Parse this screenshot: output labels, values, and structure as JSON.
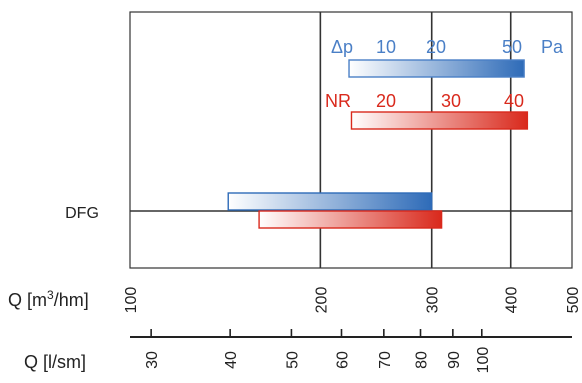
{
  "chart_data": {
    "type": "bar",
    "orientation": "horizontal",
    "title": "",
    "grid": true,
    "categories": [
      "DFG"
    ],
    "x_axis_primary": {
      "label_prefix": "Q [m",
      "label_sup": "3",
      "label_suffix": "/hm]",
      "scale": "log",
      "xlim": [
        100,
        500
      ],
      "ticks": [
        100,
        200,
        300,
        400,
        500
      ],
      "gridlines_at": [
        200,
        300,
        400
      ]
    },
    "x_axis_secondary": {
      "label": "Q [l/sm]",
      "ticks": [
        30,
        40,
        50,
        60,
        70,
        80,
        90,
        100
      ]
    },
    "series": [
      {
        "name": "",
        "color": "#2e6bb8",
        "start": 143,
        "end": 300
      },
      {
        "name": "",
        "color": "#d9291c",
        "start": 160,
        "end": 311
      }
    ],
    "legend": [
      {
        "label": "Δp",
        "color": "#4a7fc6",
        "ticks": [
          "10",
          "20",
          "50"
        ],
        "unit": "Pa",
        "bar_start": 222,
        "bar_end": 420
      },
      {
        "label": "NR",
        "color": "#d9291c",
        "ticks": [
          "20",
          "30",
          "40"
        ],
        "unit": "",
        "bar_start": 224,
        "bar_end": 425
      }
    ]
  }
}
